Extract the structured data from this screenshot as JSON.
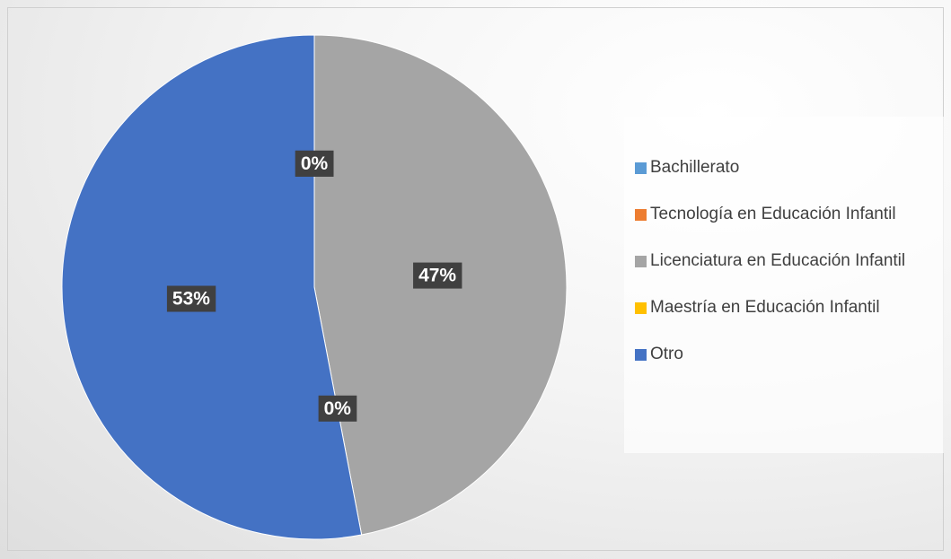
{
  "chart_data": {
    "type": "pie",
    "categories": [
      "Bachillerato",
      "Tecnología en Educación Infantil",
      "Licenciatura en Educación Infantil",
      "Maestría en Educación Infantil",
      "Otro"
    ],
    "values": [
      0,
      0,
      47,
      0,
      53
    ],
    "value_labels": [
      "0%",
      "0%",
      "47%",
      "0%",
      "53%"
    ],
    "colors": [
      "#5b9bd5",
      "#ed7d31",
      "#a5a5a5",
      "#ffc000",
      "#4472c4"
    ],
    "legend": "right"
  }
}
